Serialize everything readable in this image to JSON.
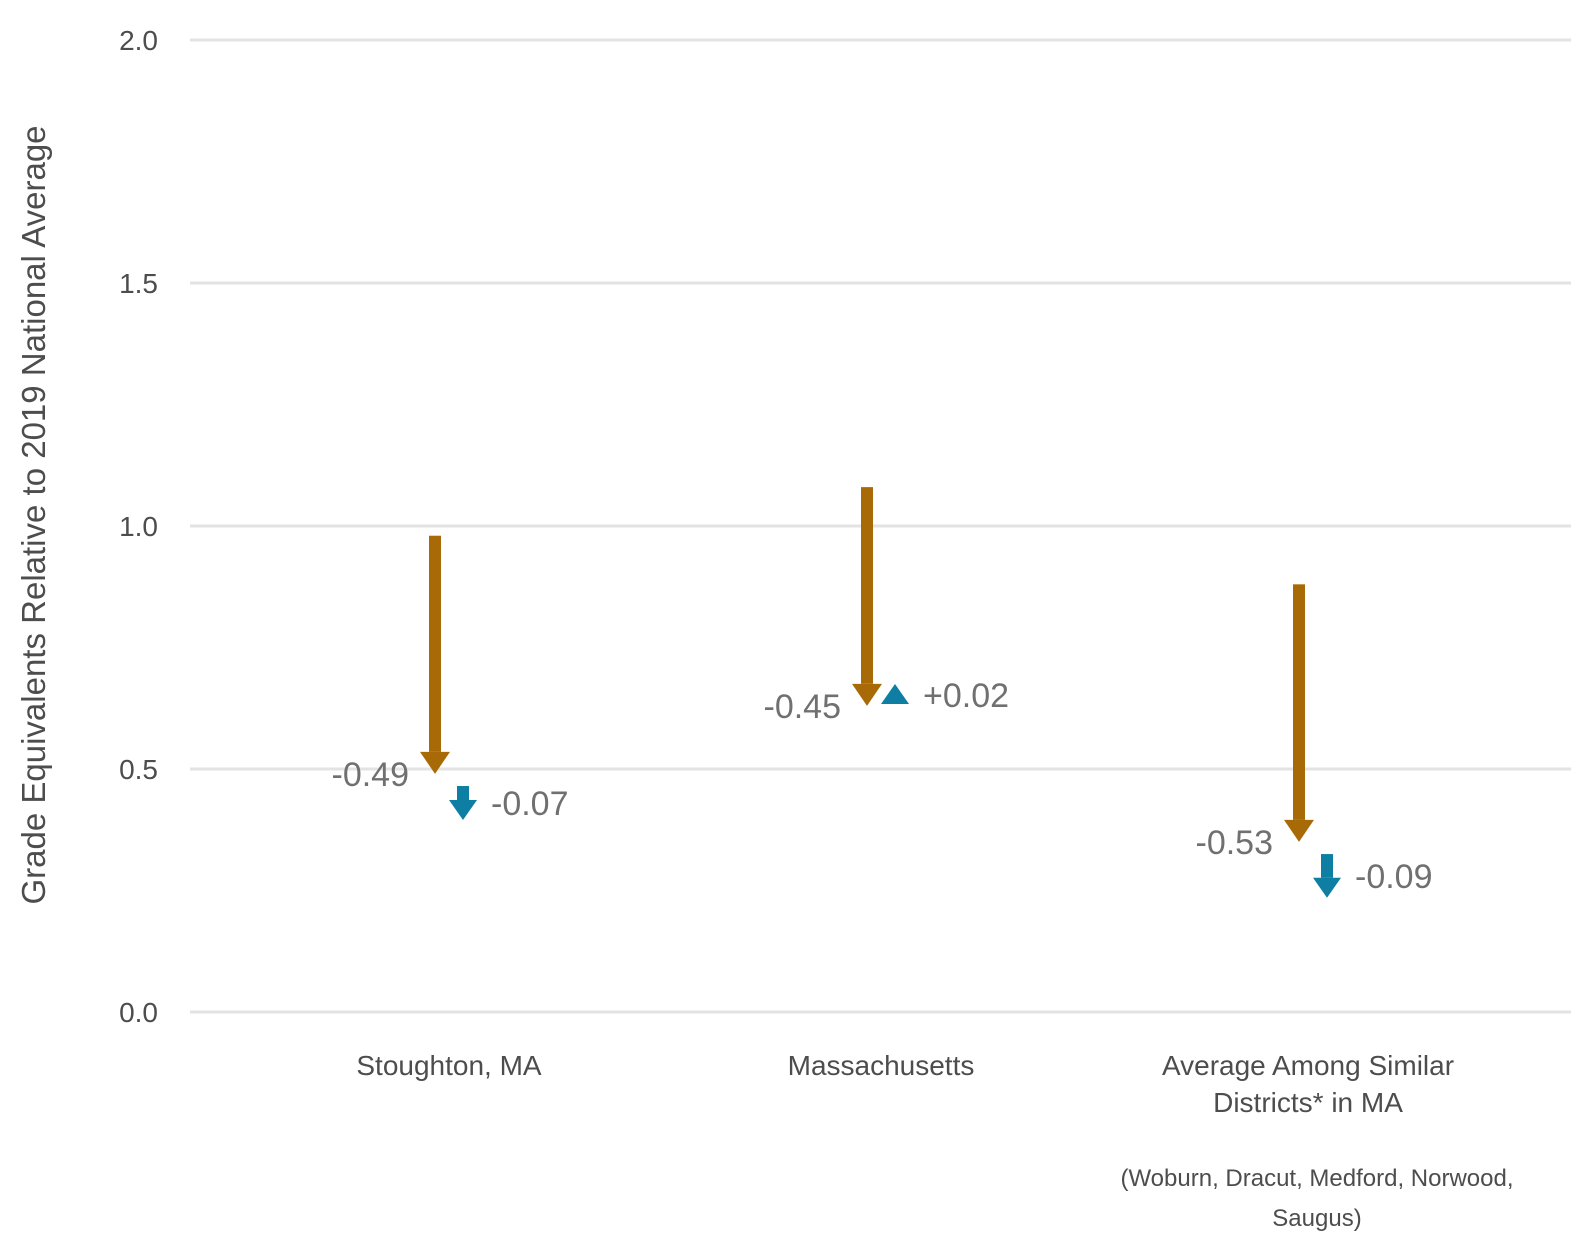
{
  "chart_data": {
    "type": "arrow",
    "ylabel": "Grade Equivalents Relative to 2019 National Average",
    "ylim": [
      0,
      2.0
    ],
    "yticks": [
      "0.0",
      "0.5",
      "1.0",
      "1.5",
      "2.0"
    ],
    "grid": true,
    "colors": {
      "first_change": "#a86a07",
      "second_change": "#0e7fa3"
    },
    "categories": [
      {
        "label_lines": [
          "Stoughton, MA"
        ],
        "note_lines": [],
        "start": 0.98,
        "first_change": -0.49,
        "first_label": "-0.49",
        "second_change": -0.07,
        "second_label": "-0.07"
      },
      {
        "label_lines": [
          "Massachusetts"
        ],
        "note_lines": [],
        "start": 1.08,
        "first_change": -0.45,
        "first_label": "-0.45",
        "second_change": 0.02,
        "second_label": "+0.02"
      },
      {
        "label_lines": [
          "Average Among Similar",
          "Districts* in MA"
        ],
        "note_lines": [
          "(Woburn, Dracut, Medford, Norwood,",
          "Saugus)"
        ],
        "start": 0.88,
        "first_change": -0.53,
        "first_label": "-0.53",
        "second_change": -0.09,
        "second_label": "-0.09"
      }
    ]
  }
}
